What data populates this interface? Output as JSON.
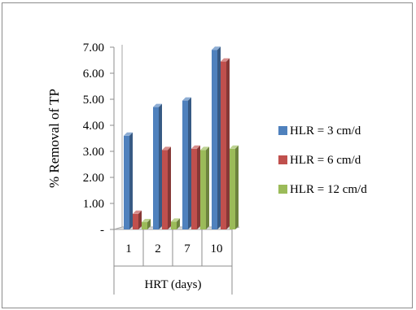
{
  "chart_data": {
    "type": "bar",
    "categories": [
      "1",
      "2",
      "7",
      "10"
    ],
    "category_group_label": "HRT (days)",
    "ylabel": "% Removal of TP",
    "ylim": [
      0,
      7
    ],
    "yticks": [
      "-",
      "1.00",
      "2.00",
      "3.00",
      "4.00",
      "5.00",
      "6.00",
      "7.00"
    ],
    "grid": false,
    "legend_position": "right",
    "series": [
      {
        "name": "HLR = 3 cm/d",
        "color": "#4f81bd",
        "values": [
          3.6,
          4.7,
          4.95,
          6.9
        ]
      },
      {
        "name": "HLR = 6 cm/d",
        "color": "#c0504d",
        "values": [
          0.6,
          3.05,
          3.1,
          6.45
        ]
      },
      {
        "name": "HLR = 12 cm/d",
        "color": "#9bbb59",
        "values": [
          0.28,
          0.3,
          3.05,
          3.1
        ]
      }
    ]
  }
}
